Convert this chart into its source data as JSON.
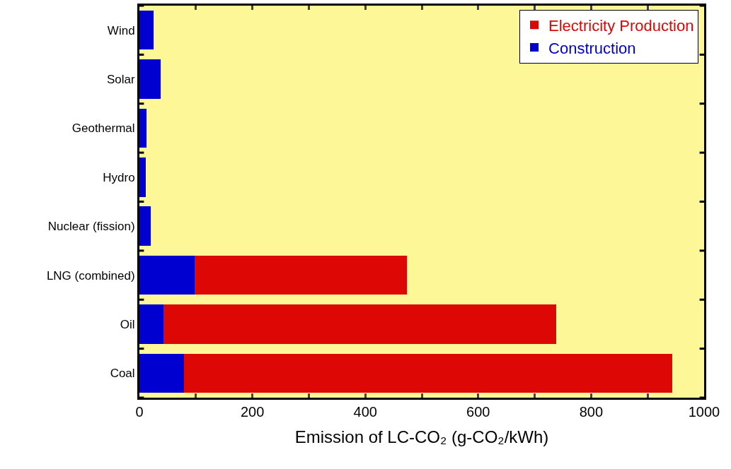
{
  "chart_data": {
    "type": "bar",
    "orientation": "horizontal",
    "stacked": true,
    "xlabel": "Emission of LC-CO₂ (g-CO₂/kWh)",
    "categories": [
      "Wind",
      "Solar",
      "Geothermal",
      "Hydro",
      "Nuclear (fission)",
      "LNG (combined)",
      "Oil",
      "Coal"
    ],
    "series": [
      {
        "name": "Construction",
        "color": "#0000d0",
        "values": [
          25,
          38,
          13,
          11,
          20,
          98,
          43,
          79
        ]
      },
      {
        "name": "Electricity Production",
        "color": "#dd0805",
        "values": [
          0,
          0,
          0,
          0,
          0,
          376,
          695,
          864
        ]
      }
    ],
    "xlim": [
      0,
      1000
    ],
    "xticks": [
      0,
      {
        "value": 100,
        "label": null
      },
      200,
      {
        "value": 300,
        "label": null
      },
      400,
      {
        "value": 500,
        "label": null
      },
      600,
      {
        "value": 700,
        "label": null
      },
      800,
      {
        "value": 900,
        "label": null
      },
      1000
    ],
    "grid": false,
    "legend": "top right"
  }
}
